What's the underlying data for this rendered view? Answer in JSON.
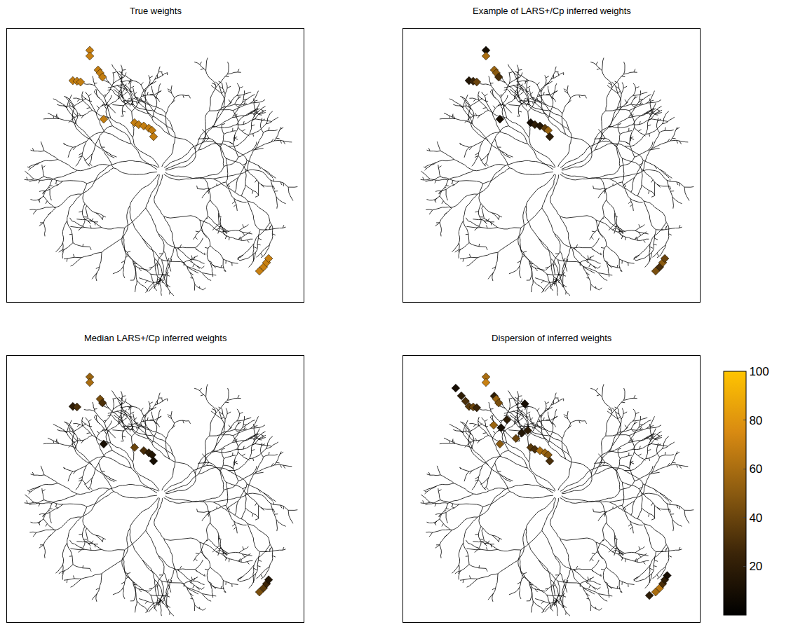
{
  "chart_data": [
    {
      "type": "scatter",
      "title": "True weights",
      "marker": "diamond",
      "xlim": [
        0,
        100
      ],
      "ylim": [
        0,
        100
      ],
      "tick_labels": false,
      "x": [
        22.2,
        23.6,
        24.8,
        27.9,
        27.9,
        30.7,
        31.4,
        32.2,
        32.6,
        43.0,
        44.4,
        46.1,
        47.8,
        48.9,
        49.4,
        85.1,
        86.5,
        87.5,
        88.2
      ],
      "y": [
        81.0,
        80.8,
        80.5,
        92.1,
        90.0,
        84.9,
        83.8,
        82.3,
        66.9,
        65.6,
        64.9,
        64.4,
        63.6,
        62.8,
        60.5,
        11.3,
        12.8,
        14.4,
        15.9
      ],
      "values": [
        68,
        68,
        68,
        70,
        70,
        68,
        68,
        68,
        68,
        68,
        68,
        68,
        68,
        68,
        68,
        70,
        70,
        70,
        70
      ]
    },
    {
      "type": "scatter",
      "title": "Example of LARS+/Cp inferred weights",
      "marker": "diamond",
      "xlim": [
        0,
        100
      ],
      "ylim": [
        0,
        100
      ],
      "tick_labels": false,
      "x": [
        22.2,
        23.6,
        24.8,
        27.9,
        27.9,
        30.7,
        31.4,
        32.2,
        32.6,
        43.0,
        44.4,
        46.1,
        47.8,
        48.9,
        49.4,
        85.1,
        86.5,
        87.5,
        88.2
      ],
      "y": [
        81.0,
        80.8,
        80.5,
        92.1,
        90.0,
        84.9,
        83.8,
        82.3,
        66.9,
        65.6,
        64.9,
        64.4,
        63.6,
        62.8,
        60.5,
        11.3,
        12.8,
        14.4,
        15.9
      ],
      "values": [
        15,
        25,
        40,
        10,
        60,
        55,
        50,
        30,
        10,
        10,
        20,
        15,
        35,
        55,
        20,
        45,
        30,
        50,
        40
      ]
    },
    {
      "type": "scatter",
      "title": "Median LARS+/Cp inferred weights",
      "marker": "diamond",
      "xlim": [
        0,
        100
      ],
      "ylim": [
        0,
        100
      ],
      "tick_labels": false,
      "x": [
        22.2,
        23.6,
        27.9,
        27.9,
        31.4,
        32.2,
        32.6,
        43.0,
        46.1,
        47.8,
        48.9,
        49.4,
        85.1,
        86.5,
        87.5,
        88.2
      ],
      "y": [
        81.0,
        80.8,
        92.1,
        90.0,
        83.8,
        82.3,
        66.9,
        65.6,
        64.4,
        63.6,
        62.8,
        60.5,
        11.3,
        12.8,
        14.4,
        15.9
      ],
      "values": [
        20,
        30,
        55,
        60,
        45,
        30,
        10,
        40,
        30,
        20,
        15,
        10,
        45,
        35,
        25,
        15
      ]
    },
    {
      "type": "scatter",
      "title": "Dispersion of inferred weights",
      "marker": "diamond",
      "xlim": [
        0,
        100
      ],
      "ylim": [
        0,
        100
      ],
      "tick_labels": false,
      "colorbar": {
        "range": [
          0,
          100
        ],
        "ticks": [
          20,
          40,
          60,
          80,
          100
        ]
      },
      "x": [
        17.7,
        19.6,
        21.0,
        22.2,
        23.6,
        24.8,
        27.9,
        27.9,
        30.7,
        31.4,
        32.2,
        30.5,
        33.0,
        35.0,
        32.6,
        38.0,
        40.0,
        43.0,
        44.4,
        46.1,
        47.8,
        48.9,
        49.4,
        41.0,
        42.0,
        83.0,
        85.1,
        86.5,
        87.5,
        88.2,
        89.0
      ],
      "y": [
        87.9,
        85.0,
        83.0,
        81.0,
        80.8,
        80.5,
        92.1,
        90.0,
        84.9,
        83.8,
        82.3,
        74.0,
        73.0,
        76.0,
        66.9,
        69.0,
        71.0,
        65.6,
        64.9,
        64.4,
        63.6,
        62.8,
        60.5,
        82.0,
        72.0,
        10.0,
        11.3,
        12.8,
        14.4,
        15.9,
        17.5
      ],
      "values": [
        10,
        20,
        30,
        35,
        40,
        25,
        60,
        70,
        20,
        55,
        45,
        55,
        10,
        20,
        50,
        40,
        15,
        35,
        30,
        60,
        55,
        50,
        30,
        10,
        20,
        20,
        60,
        65,
        30,
        20,
        10
      ]
    }
  ]
}
